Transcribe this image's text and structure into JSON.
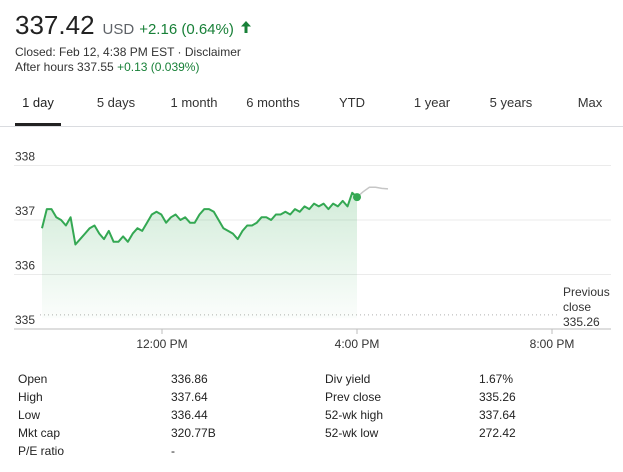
{
  "quote": {
    "price": "337.42",
    "currency": "USD",
    "change": "+2.16 (0.64%)",
    "closed_text": "Closed: Feb 12, 4:38 PM EST",
    "separator": " · ",
    "disclaimer": "Disclaimer",
    "after_hours_label": "After hours 337.55",
    "after_hours_change": "+0.13 (0.039%)",
    "up_color": "#188038"
  },
  "tabs": [
    {
      "label": "1 day",
      "active": true
    },
    {
      "label": "5 days"
    },
    {
      "label": "1 month"
    },
    {
      "label": "6 months"
    },
    {
      "label": "YTD"
    },
    {
      "label": "1 year"
    },
    {
      "label": "5 years"
    },
    {
      "label": "Max"
    }
  ],
  "chart_data": {
    "type": "line",
    "y_ticks": [
      "338",
      "337",
      "336",
      "335"
    ],
    "ylim": [
      335,
      338.3
    ],
    "x_ticks": [
      "12:00 PM",
      "4:00 PM",
      "8:00 PM"
    ],
    "previous_close": {
      "label_line1": "Previous",
      "label_line2": "close",
      "value": "335.26"
    },
    "series": [
      {
        "values": [
          336.85,
          337.2,
          337.2,
          337.05,
          337.0,
          336.9,
          337.05,
          336.55,
          336.65,
          336.75,
          336.85,
          336.9,
          336.75,
          336.65,
          336.8,
          336.6,
          336.6,
          336.7,
          336.6,
          336.75,
          336.85,
          336.8,
          336.95,
          337.1,
          337.15,
          337.1,
          336.95,
          337.05,
          337.1,
          337.0,
          337.05,
          336.95,
          336.95,
          337.1,
          337.2,
          337.2,
          337.15,
          337.0,
          336.85,
          336.8,
          336.75,
          336.65,
          336.8,
          336.9,
          336.9,
          336.95,
          337.05,
          337.05,
          337.0,
          337.1,
          337.1,
          337.15,
          337.1,
          337.2,
          337.15,
          337.25,
          337.2,
          337.3,
          337.25,
          337.3,
          337.2,
          337.3,
          337.25,
          337.35,
          337.25,
          337.5,
          337.42
        ],
        "color": "#34a853"
      },
      {
        "values": [
          337.42,
          337.52,
          337.6,
          337.6,
          337.58,
          337.57
        ],
        "color": "#c6c6c6"
      }
    ]
  },
  "stats": [
    {
      "label": "Open",
      "value": "336.86"
    },
    {
      "label": "High",
      "value": "337.64"
    },
    {
      "label": "Low",
      "value": "336.44"
    },
    {
      "label": "Mkt cap",
      "value": "320.77B"
    },
    {
      "label": "P/E ratio",
      "value": "-"
    },
    {
      "label": "Div yield",
      "value": "1.67%"
    },
    {
      "label": "Prev close",
      "value": "335.26"
    },
    {
      "label": "52-wk high",
      "value": "337.64"
    },
    {
      "label": "52-wk low",
      "value": "272.42"
    }
  ]
}
